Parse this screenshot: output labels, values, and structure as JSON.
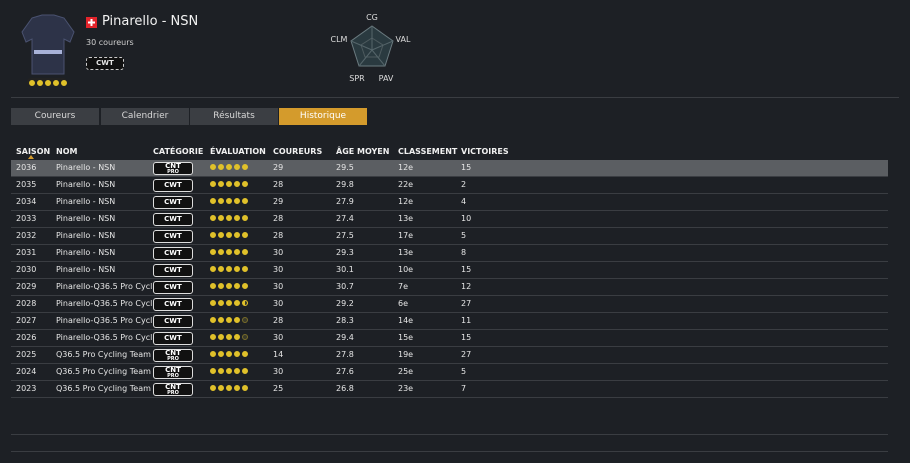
{
  "header": {
    "team_name": "Pinarello - NSN",
    "riders": "30 coureurs",
    "badge": "CWT",
    "rating": 5
  },
  "radar": {
    "labels": [
      "CG",
      "VAL",
      "PAV",
      "SPR",
      "CLM"
    ]
  },
  "tabs": [
    "Coureurs",
    "Calendrier",
    "Résultats",
    "Historique"
  ],
  "active_tab": 3,
  "table": {
    "columns": [
      "SAISON",
      "NOM",
      "CATÉGORIE",
      "ÉVALUATION",
      "COUREURS",
      "ÂGE MOYEN",
      "CLASSEMENT",
      "VICTOIRES"
    ],
    "rows": [
      {
        "season": "2036",
        "name": "Pinarello - NSN",
        "category": {
          "main": "CNT",
          "sub": "PRO"
        },
        "rating": 5,
        "riders": "29",
        "age": "29.5",
        "rank": "12e",
        "wins": "15"
      },
      {
        "season": "2035",
        "name": "Pinarello - NSN",
        "category": {
          "main": "CWT"
        },
        "rating": 5,
        "riders": "28",
        "age": "29.8",
        "rank": "22e",
        "wins": "2"
      },
      {
        "season": "2034",
        "name": "Pinarello - NSN",
        "category": {
          "main": "CWT"
        },
        "rating": 5,
        "riders": "29",
        "age": "27.9",
        "rank": "12e",
        "wins": "4"
      },
      {
        "season": "2033",
        "name": "Pinarello - NSN",
        "category": {
          "main": "CWT"
        },
        "rating": 5,
        "riders": "28",
        "age": "27.4",
        "rank": "13e",
        "wins": "10"
      },
      {
        "season": "2032",
        "name": "Pinarello - NSN",
        "category": {
          "main": "CWT"
        },
        "rating": 5,
        "riders": "28",
        "age": "27.5",
        "rank": "17e",
        "wins": "5"
      },
      {
        "season": "2031",
        "name": "Pinarello - NSN",
        "category": {
          "main": "CWT"
        },
        "rating": 5,
        "riders": "30",
        "age": "29.3",
        "rank": "13e",
        "wins": "8"
      },
      {
        "season": "2030",
        "name": "Pinarello - NSN",
        "category": {
          "main": "CWT"
        },
        "rating": 5,
        "riders": "30",
        "age": "30.1",
        "rank": "10e",
        "wins": "15"
      },
      {
        "season": "2029",
        "name": "Pinarello-Q36.5 Pro Cycl..",
        "category": {
          "main": "CWT"
        },
        "rating": 5,
        "riders": "30",
        "age": "30.7",
        "rank": "7e",
        "wins": "12"
      },
      {
        "season": "2028",
        "name": "Pinarello-Q36.5 Pro Cycl..",
        "category": {
          "main": "CWT"
        },
        "rating": 4.5,
        "riders": "30",
        "age": "29.2",
        "rank": "6e",
        "wins": "27"
      },
      {
        "season": "2027",
        "name": "Pinarello-Q36.5 Pro Cycl..",
        "category": {
          "main": "CWT"
        },
        "rating": 4,
        "riders": "28",
        "age": "28.3",
        "rank": "14e",
        "wins": "11"
      },
      {
        "season": "2026",
        "name": "Pinarello-Q36.5 Pro Cycl..",
        "category": {
          "main": "CWT"
        },
        "rating": 4,
        "riders": "30",
        "age": "29.4",
        "rank": "15e",
        "wins": "15"
      },
      {
        "season": "2025",
        "name": "Q36.5 Pro Cycling Team",
        "category": {
          "main": "CNT",
          "sub": "PRO"
        },
        "rating": 5,
        "riders": "14",
        "age": "27.8",
        "rank": "19e",
        "wins": "27"
      },
      {
        "season": "2024",
        "name": "Q36.5 Pro Cycling Team",
        "category": {
          "main": "CNT",
          "sub": "PRO"
        },
        "rating": 5,
        "riders": "30",
        "age": "27.6",
        "rank": "25e",
        "wins": "5"
      },
      {
        "season": "2023",
        "name": "Q36.5 Pro Cycling Team",
        "category": {
          "main": "CNT",
          "sub": "PRO"
        },
        "rating": 5,
        "riders": "25",
        "age": "26.8",
        "rank": "23e",
        "wins": "7"
      }
    ]
  }
}
